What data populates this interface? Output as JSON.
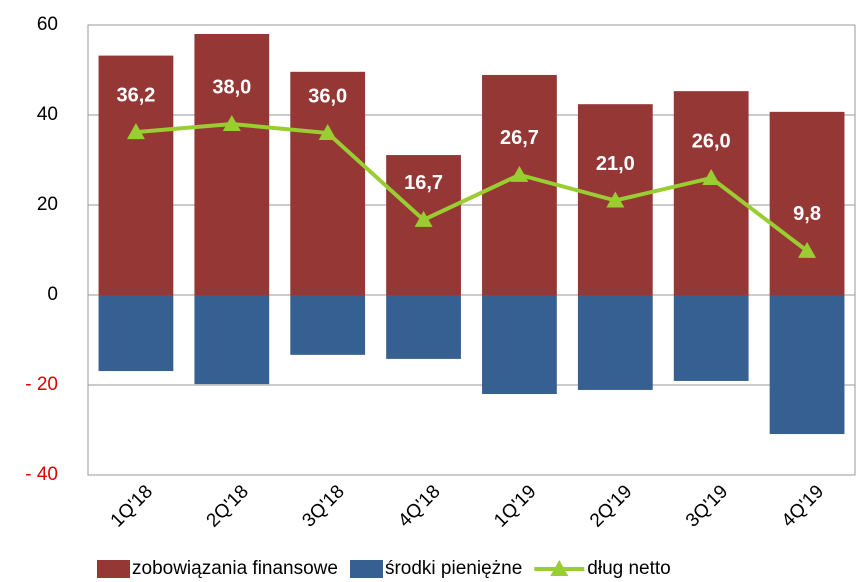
{
  "chart_data": {
    "type": "bar_line",
    "categories": [
      "1Q'18",
      "2Q'18",
      "3Q'18",
      "4Q'18",
      "1Q'19",
      "2Q'19",
      "3Q'19",
      "4Q'19"
    ],
    "series": [
      {
        "name": "zobowiązania finansowe",
        "color": "#953735",
        "type": "bar",
        "values": [
          53.2,
          58.0,
          49.6,
          31.1,
          48.9,
          42.4,
          45.3,
          40.7
        ]
      },
      {
        "name": "środki pieniężne",
        "color": "#376092",
        "type": "bar",
        "values": [
          -16.9,
          -19.8,
          -13.3,
          -14.2,
          -22.0,
          -21.1,
          -19.1,
          -30.9
        ]
      },
      {
        "name": "dług netto",
        "color": "#9acd32",
        "type": "line",
        "values": [
          36.2,
          38.0,
          36.0,
          16.7,
          26.7,
          21.0,
          26.0,
          9.8
        ],
        "value_labels": [
          "36,2",
          "38,0",
          "36,0",
          "16,7",
          "26,7",
          "21,0",
          "26,0",
          "9,8"
        ]
      }
    ],
    "ylim": [
      -40,
      60
    ],
    "yticks": [
      {
        "value": -40,
        "label": "- 40"
      },
      {
        "value": -20,
        "label": "- 20"
      },
      0,
      20,
      40,
      60
    ],
    "negative_tick_color": "#e00000",
    "grid": true,
    "legend": "bottom"
  }
}
